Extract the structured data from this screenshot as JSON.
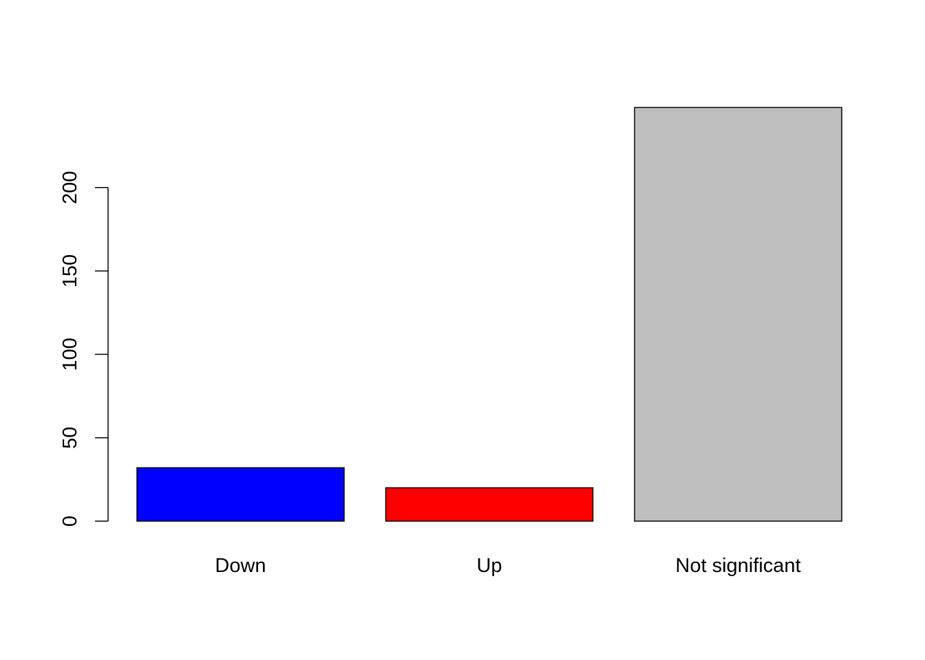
{
  "chart_data": {
    "type": "bar",
    "categories": [
      "Down",
      "Up",
      "Not significant"
    ],
    "values": [
      32,
      20,
      248
    ],
    "colors": [
      "#0000ff",
      "#ff0000",
      "#bebebe"
    ],
    "bar_border_color": "#000000",
    "yticks": [
      0,
      50,
      100,
      150,
      200
    ],
    "ytick_labels": [
      "0",
      "50",
      "100",
      "150",
      "200"
    ],
    "ylim": [
      0,
      248
    ],
    "title": "",
    "xlabel": "",
    "ylabel": "",
    "grid": false,
    "legend": "none"
  }
}
